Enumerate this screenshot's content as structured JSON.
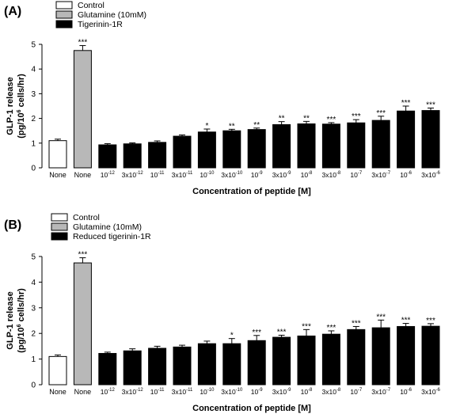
{
  "chart_data": [
    {
      "type": "bar",
      "panel_label": "(A)",
      "ylabel_line1": "GLP-1 release",
      "ylabel_line2_parts": [
        "(pg/10",
        "6",
        " cells/hr)"
      ],
      "xlabel": "Concentration of peptide [M]",
      "ylim": [
        0,
        5
      ],
      "yticks": [
        "0",
        "1",
        "2",
        "3",
        "4",
        "5"
      ],
      "legend": [
        {
          "name": "Control",
          "color": "#ffffff"
        },
        {
          "name": "Glutamine (10mM)",
          "color": "#b8b8b8"
        },
        {
          "name": "Tigerinin-1R",
          "color": "#000000"
        }
      ],
      "categories": [
        {
          "pre": "None",
          "exp": ""
        },
        {
          "pre": "None",
          "exp": ""
        },
        {
          "pre": "10",
          "exp": "-12"
        },
        {
          "pre": "3x10",
          "exp": "-12"
        },
        {
          "pre": "10",
          "exp": "-11"
        },
        {
          "pre": "3x10",
          "exp": "-11"
        },
        {
          "pre": "10",
          "exp": "-10"
        },
        {
          "pre": "3x10",
          "exp": "-10"
        },
        {
          "pre": "10",
          "exp": "-9"
        },
        {
          "pre": "3x10",
          "exp": "-9"
        },
        {
          "pre": "10",
          "exp": "-8"
        },
        {
          "pre": "3x10",
          "exp": "-8"
        },
        {
          "pre": "10",
          "exp": "-7"
        },
        {
          "pre": "3x10",
          "exp": "-7"
        },
        {
          "pre": "10",
          "exp": "-6"
        },
        {
          "pre": "3x10",
          "exp": "-6"
        }
      ],
      "values": [
        1.1,
        4.75,
        0.93,
        0.97,
        1.03,
        1.28,
        1.45,
        1.5,
        1.55,
        1.75,
        1.78,
        1.77,
        1.82,
        1.92,
        2.3,
        2.32
      ],
      "errors": [
        0.06,
        0.2,
        0.05,
        0.04,
        0.06,
        0.05,
        0.12,
        0.06,
        0.06,
        0.12,
        0.1,
        0.06,
        0.13,
        0.17,
        0.2,
        0.1
      ],
      "significance": [
        "",
        "***",
        "",
        "",
        "",
        "",
        "*",
        "**",
        "**",
        "**",
        "**",
        "***",
        "***",
        "***",
        "***",
        "***"
      ],
      "bar_colors": [
        "#ffffff",
        "#b8b8b8",
        "#000000",
        "#000000",
        "#000000",
        "#000000",
        "#000000",
        "#000000",
        "#000000",
        "#000000",
        "#000000",
        "#000000",
        "#000000",
        "#000000",
        "#000000",
        "#000000"
      ]
    },
    {
      "type": "bar",
      "panel_label": "(B)",
      "ylabel_line1": "GLP-1 release",
      "ylabel_line2_parts": [
        "(pg/10",
        "6",
        " cells/hr)"
      ],
      "xlabel": "Concentration of peptide [M]",
      "ylim": [
        0,
        5
      ],
      "yticks": [
        "0",
        "1",
        "2",
        "3",
        "4",
        "5"
      ],
      "legend": [
        {
          "name": "Control",
          "color": "#ffffff"
        },
        {
          "name": "Glutamine (10mM)",
          "color": "#b8b8b8"
        },
        {
          "name": "Reduced tigerinin-1R",
          "color": "#000000"
        }
      ],
      "categories": [
        {
          "pre": "None",
          "exp": ""
        },
        {
          "pre": "None",
          "exp": ""
        },
        {
          "pre": "10",
          "exp": "-12"
        },
        {
          "pre": "3x10",
          "exp": "-12"
        },
        {
          "pre": "10",
          "exp": "-11"
        },
        {
          "pre": "3x10",
          "exp": "-11"
        },
        {
          "pre": "10",
          "exp": "-10"
        },
        {
          "pre": "3x10",
          "exp": "-10"
        },
        {
          "pre": "10",
          "exp": "-9"
        },
        {
          "pre": "3x10",
          "exp": "-9"
        },
        {
          "pre": "10",
          "exp": "-8"
        },
        {
          "pre": "3x10",
          "exp": "-8"
        },
        {
          "pre": "10",
          "exp": "-7"
        },
        {
          "pre": "3x10",
          "exp": "-7"
        },
        {
          "pre": "10",
          "exp": "-6"
        },
        {
          "pre": "3x10",
          "exp": "-6"
        }
      ],
      "values": [
        1.1,
        4.75,
        1.22,
        1.32,
        1.42,
        1.47,
        1.6,
        1.6,
        1.72,
        1.85,
        1.9,
        1.97,
        2.15,
        2.22,
        2.27,
        2.28
      ],
      "errors": [
        0.06,
        0.2,
        0.05,
        0.08,
        0.08,
        0.07,
        0.1,
        0.2,
        0.2,
        0.08,
        0.25,
        0.13,
        0.12,
        0.3,
        0.12,
        0.1
      ],
      "significance": [
        "",
        "***",
        "",
        "",
        "",
        "",
        "",
        "*",
        "***",
        "***",
        "***",
        "***",
        "***",
        "***",
        "***",
        "***"
      ],
      "bar_colors": [
        "#ffffff",
        "#b8b8b8",
        "#000000",
        "#000000",
        "#000000",
        "#000000",
        "#000000",
        "#000000",
        "#000000",
        "#000000",
        "#000000",
        "#000000",
        "#000000",
        "#000000",
        "#000000",
        "#000000"
      ]
    }
  ]
}
